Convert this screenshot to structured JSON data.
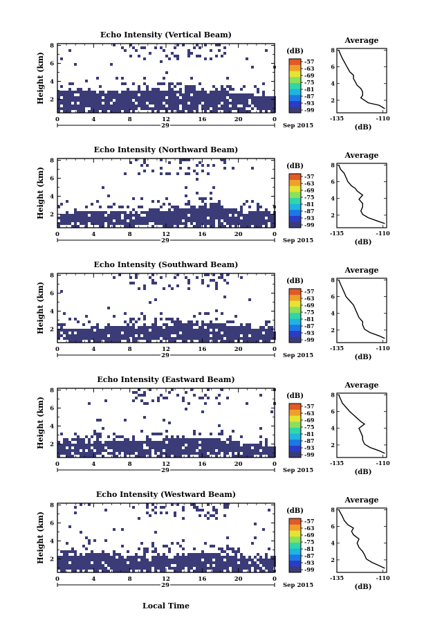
{
  "figure": {
    "xlabel": "Local Time",
    "date_label": "Sep 2015",
    "day_label": "29",
    "avg_title": "Average",
    "avg_unit": "(dB)",
    "colorbar_unit": "(dB)",
    "ylabel": "Height (km)"
  },
  "colorbar": {
    "ticks": [
      "-57",
      "-63",
      "-69",
      "-75",
      "-81",
      "-87",
      "-93",
      "-99"
    ],
    "colors": [
      "#3a3c78",
      "#2a3cc8",
      "#1c78e6",
      "#20b4e0",
      "#30d6a8",
      "#8ce05a",
      "#e6e432",
      "#f0a028",
      "#e05a28"
    ]
  },
  "chart_data": [
    {
      "type": "heatmap",
      "title": "Echo Intensity (Vertical Beam)",
      "xlabel": "Local Time",
      "ylabel": "Height (km)",
      "x_ticks": [
        "0",
        "4",
        "8",
        "12",
        "16",
        "20",
        "0"
      ],
      "y_ticks": [
        "2",
        "4",
        "6",
        "8"
      ],
      "xlim": [
        0,
        24
      ],
      "ylim": [
        0.5,
        8.2
      ],
      "echo_layer": {
        "base_km": 1.0,
        "top_km": [
          3.2,
          3.2,
          3.0,
          3.0,
          3.2,
          3.2,
          3.1,
          3.4,
          3.2,
          3.0,
          2.8,
          2.6,
          2.5
        ],
        "upper_patches": true
      },
      "profile": {
        "title": "Average",
        "unit": "(dB)",
        "xlim": [
          -135,
          -108
        ],
        "x_ticks": [
          "-135",
          "-110"
        ],
        "y_ticks": [
          "2",
          "4",
          "6",
          "8"
        ],
        "points": [
          [
            -109,
            1.0
          ],
          [
            -112,
            1.4
          ],
          [
            -118,
            1.7
          ],
          [
            -120,
            2.0
          ],
          [
            -122,
            2.3
          ],
          [
            -121,
            2.6
          ],
          [
            -121,
            3.0
          ],
          [
            -122,
            3.4
          ],
          [
            -124,
            3.8
          ],
          [
            -125,
            4.2
          ],
          [
            -126,
            4.6
          ],
          [
            -126,
            5.0
          ],
          [
            -128,
            5.4
          ],
          [
            -129,
            5.8
          ],
          [
            -130,
            6.2
          ],
          [
            -131,
            6.6
          ],
          [
            -132,
            7.0
          ],
          [
            -133,
            7.5
          ],
          [
            -134,
            8.0
          ]
        ]
      }
    },
    {
      "type": "heatmap",
      "title": "Echo Intensity (Northward Beam)",
      "xlabel": "Local Time",
      "ylabel": "Height (km)",
      "x_ticks": [
        "0",
        "4",
        "8",
        "12",
        "16",
        "20",
        "0"
      ],
      "y_ticks": [
        "2",
        "4",
        "6",
        "8"
      ],
      "xlim": [
        0,
        24
      ],
      "ylim": [
        0.5,
        8.2
      ],
      "echo_layer": {
        "base_km": 1.0,
        "top_km": [
          2.2,
          2.4,
          2.5,
          2.4,
          2.3,
          2.4,
          2.5,
          3.0,
          3.2,
          3.0,
          2.7,
          2.5,
          2.3
        ],
        "upper_patches": true
      },
      "profile": {
        "title": "Average",
        "unit": "(dB)",
        "xlim": [
          -135,
          -108
        ],
        "x_ticks": [
          "-135",
          "-110"
        ],
        "y_ticks": [
          "2",
          "4",
          "6",
          "8"
        ],
        "points": [
          [
            -109,
            1.0
          ],
          [
            -113,
            1.3
          ],
          [
            -118,
            1.7
          ],
          [
            -121,
            2.1
          ],
          [
            -122,
            2.5
          ],
          [
            -121,
            3.0
          ],
          [
            -121,
            3.4
          ],
          [
            -123,
            3.9
          ],
          [
            -121,
            4.4
          ],
          [
            -124,
            4.9
          ],
          [
            -125,
            5.2
          ],
          [
            -127,
            5.5
          ],
          [
            -129,
            6.0
          ],
          [
            -130,
            6.5
          ],
          [
            -131,
            7.0
          ],
          [
            -133,
            7.5
          ],
          [
            -134,
            8.0
          ]
        ]
      }
    },
    {
      "type": "heatmap",
      "title": "Echo Intensity (Southward Beam)",
      "xlabel": "Local Time",
      "ylabel": "Height (km)",
      "x_ticks": [
        "0",
        "4",
        "8",
        "12",
        "16",
        "20",
        "0"
      ],
      "y_ticks": [
        "2",
        "4",
        "6",
        "8"
      ],
      "xlim": [
        0,
        24
      ],
      "ylim": [
        0.5,
        8.2
      ],
      "echo_layer": {
        "base_km": 1.0,
        "top_km": [
          2.1,
          2.2,
          2.3,
          2.4,
          2.5,
          2.6,
          2.6,
          2.8,
          2.9,
          2.7,
          2.5,
          2.2,
          2.0
        ],
        "upper_patches": true
      },
      "profile": {
        "title": "Average",
        "unit": "(dB)",
        "xlim": [
          -135,
          -108
        ],
        "x_ticks": [
          "-135",
          "-110"
        ],
        "y_ticks": [
          "2",
          "4",
          "6",
          "8"
        ],
        "points": [
          [
            -109,
            1.0
          ],
          [
            -112,
            1.3
          ],
          [
            -117,
            1.7
          ],
          [
            -120,
            2.1
          ],
          [
            -121,
            2.6
          ],
          [
            -121,
            3.0
          ],
          [
            -123,
            3.5
          ],
          [
            -124,
            4.0
          ],
          [
            -125,
            4.5
          ],
          [
            -126,
            5.0
          ],
          [
            -128,
            5.5
          ],
          [
            -130,
            6.0
          ],
          [
            -131,
            6.5
          ],
          [
            -132,
            7.0
          ],
          [
            -133,
            7.5
          ],
          [
            -134,
            8.0
          ]
        ]
      }
    },
    {
      "type": "heatmap",
      "title": "Echo Intensity (Eastward Beam)",
      "xlabel": "Local Time",
      "ylabel": "Height (km)",
      "x_ticks": [
        "0",
        "4",
        "8",
        "12",
        "16",
        "20",
        "0"
      ],
      "y_ticks": [
        "2",
        "4",
        "6",
        "8"
      ],
      "xlim": [
        0,
        24
      ],
      "ylim": [
        0.5,
        8.2
      ],
      "echo_layer": {
        "base_km": 1.0,
        "top_km": [
          2.6,
          2.7,
          2.6,
          2.5,
          2.4,
          2.5,
          2.7,
          2.9,
          2.8,
          2.6,
          2.3,
          2.1,
          2.0
        ],
        "upper_patches": true
      },
      "profile": {
        "title": "Average",
        "unit": "(dB)",
        "xlim": [
          -135,
          -108
        ],
        "x_ticks": [
          "-135",
          "-110"
        ],
        "y_ticks": [
          "2",
          "4",
          "6",
          "8"
        ],
        "points": [
          [
            -109,
            1.0
          ],
          [
            -112,
            1.3
          ],
          [
            -117,
            1.7
          ],
          [
            -120,
            2.1
          ],
          [
            -121,
            2.6
          ],
          [
            -121,
            3.0
          ],
          [
            -122,
            3.5
          ],
          [
            -123,
            4.0
          ],
          [
            -120,
            4.5
          ],
          [
            -122,
            4.8
          ],
          [
            -124,
            5.2
          ],
          [
            -126,
            5.6
          ],
          [
            -128,
            6.0
          ],
          [
            -130,
            6.5
          ],
          [
            -132,
            7.0
          ],
          [
            -133,
            7.5
          ],
          [
            -134,
            8.0
          ]
        ]
      }
    },
    {
      "type": "heatmap",
      "title": "Echo Intensity (Westward Beam)",
      "xlabel": "Local Time",
      "ylabel": "Height (km)",
      "x_ticks": [
        "0",
        "4",
        "8",
        "12",
        "16",
        "20",
        "0"
      ],
      "y_ticks": [
        "2",
        "4",
        "6",
        "8"
      ],
      "xlim": [
        0,
        24
      ],
      "ylim": [
        0.5,
        8.2
      ],
      "echo_layer": {
        "base_km": 1.0,
        "top_km": [
          2.4,
          2.6,
          2.7,
          2.7,
          2.6,
          2.5,
          2.6,
          2.7,
          2.8,
          2.6,
          2.4,
          2.2,
          2.0
        ],
        "upper_patches": true
      },
      "profile": {
        "title": "Average",
        "unit": "(dB)",
        "xlim": [
          -135,
          -108
        ],
        "x_ticks": [
          "-135",
          "-110"
        ],
        "y_ticks": [
          "2",
          "4",
          "6",
          "8"
        ],
        "points": [
          [
            -109,
            1.0
          ],
          [
            -112,
            1.3
          ],
          [
            -116,
            1.7
          ],
          [
            -119,
            2.1
          ],
          [
            -120,
            2.6
          ],
          [
            -121,
            3.0
          ],
          [
            -123,
            3.5
          ],
          [
            -124,
            4.0
          ],
          [
            -123,
            4.5
          ],
          [
            -126,
            5.0
          ],
          [
            -127,
            5.4
          ],
          [
            -126,
            5.8
          ],
          [
            -129,
            6.2
          ],
          [
            -131,
            6.7
          ],
          [
            -132,
            7.2
          ],
          [
            -133,
            7.6
          ],
          [
            -134,
            8.0
          ]
        ]
      }
    }
  ]
}
